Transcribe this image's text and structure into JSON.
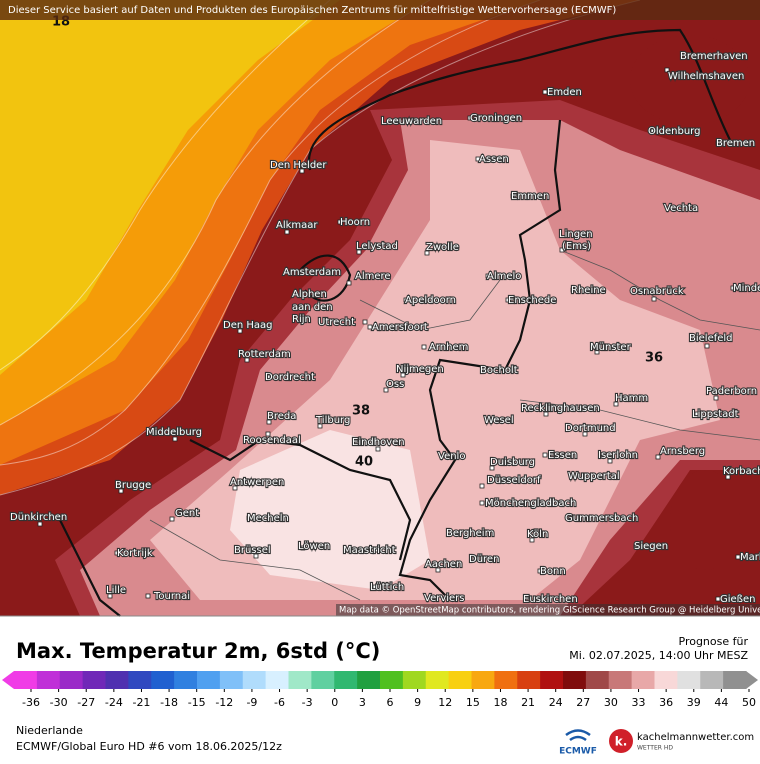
{
  "header": {
    "notice": "Dieser Service basiert auf Daten und Produkten des Europäischen Zentrums für mittelfristige Wettervorhersage (ECMWF)"
  },
  "map": {
    "cities": [
      "Bremerhaven",
      "Wilhelmshaven",
      "Emden",
      "Groningen",
      "Leeuwarden",
      "Oldenburg",
      "Bremen",
      "Assen",
      "Den Helder",
      "Emmen",
      "Vechta",
      "Alkmaar",
      "Hoorn",
      "Lingen",
      "(Ems)",
      "Lelystad",
      "Zwolle",
      "Amsterdam",
      "Almere",
      "Almelo",
      "Alphen",
      "aan den",
      "Rijn",
      "Rheine",
      "Osnabrück",
      "Minden",
      "Apeldoorn",
      "Enschede",
      "Utrecht",
      "Den Haag",
      "Amersfoort",
      "Bielefeld",
      "Arnhem",
      "Münster",
      "Rotterdam",
      "Nijmegen",
      "Bocholt",
      "Dordrecht",
      "Oss",
      "Paderborn",
      "Hamm",
      "Recklinghausen",
      "Lippstadt",
      "Breda",
      "Tilburg",
      "Wesel",
      "Dortmund",
      "Middelburg",
      "Roosendaal",
      "Eindhoven",
      "Arnsberg",
      "Essen",
      "Iserlohn",
      "Venlo",
      "Duisburg",
      "Korbach",
      "Wuppertal",
      "Düsseldorf",
      "Antwerpen",
      "Brugge",
      "Mönchengladbach",
      "Gent",
      "Dünkirchen",
      "Mecheln",
      "Gummersbach",
      "Bergheim",
      "Köln",
      "Kortrijk",
      "Brüssel",
      "Löwen",
      "Maastricht",
      "Siegen",
      "Düren",
      "Marburg",
      "Aachen",
      "Bonn",
      "Lille",
      "Lüttich",
      "Tournai",
      "Gießen",
      "Verviers",
      "Euskirchen"
    ],
    "contour_labels": [
      "18",
      "40",
      "38",
      "36"
    ],
    "attribution": "Map data © OpenStreetMap contributors, rendering GIScience Research Group @ Heidelberg University"
  },
  "legend": {
    "title": "Max. Temperatur 2m, 6std (°C)",
    "ticks": [
      -36,
      -30,
      -27,
      -24,
      -21,
      -18,
      -15,
      -12,
      -9,
      -6,
      -3,
      0,
      3,
      6,
      9,
      12,
      15,
      18,
      21,
      24,
      27,
      30,
      33,
      36,
      39,
      44,
      50
    ]
  },
  "forecast": {
    "label": "Prognose für",
    "time": "Mi. 02.07.2025, 14:00 Uhr MESZ"
  },
  "footer": {
    "region": "Niederlande",
    "model": "ECMWF/Global Euro HD #6 vom  18.06.2025/12z",
    "ecmwf": "ECMWF",
    "site": "kachelmannwetter.com",
    "site_sub": "WETTER HD"
  }
}
